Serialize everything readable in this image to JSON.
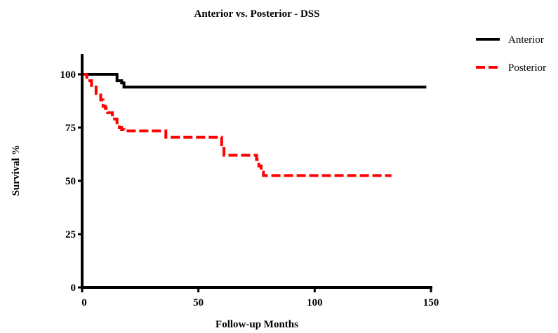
{
  "chart_data": {
    "type": "line",
    "step": true,
    "title": "Anterior vs. Posterior - DSS",
    "xlabel": "Follow-up Months",
    "ylabel": "Survival %",
    "xlim": [
      0,
      150
    ],
    "ylim": [
      0,
      110
    ],
    "xticks": [
      0,
      50,
      100,
      150
    ],
    "yticks": [
      0,
      25,
      50,
      75,
      100
    ],
    "legend_position": "top-right",
    "grid": false,
    "series": [
      {
        "name": "Anterior",
        "color": "#000000",
        "style": "solid",
        "x": [
          0,
          15,
          15,
          17,
          17,
          18,
          18,
          148
        ],
        "y": [
          100,
          100,
          97,
          97,
          96,
          96,
          94,
          94
        ]
      },
      {
        "name": "Posterior",
        "color": "#ff0000",
        "style": "dashed",
        "x": [
          0,
          2,
          2,
          4,
          4,
          6,
          6,
          8,
          8,
          9,
          9,
          10,
          10,
          11,
          11,
          13,
          13,
          15,
          15,
          16,
          16,
          17,
          17,
          18,
          18,
          36,
          36,
          60,
          60,
          61,
          61,
          75,
          75,
          76,
          76,
          77,
          77,
          78,
          78,
          133
        ],
        "y": [
          100,
          100,
          97,
          97,
          94,
          94,
          91,
          91,
          88,
          88,
          85,
          85,
          84,
          84,
          82,
          82,
          79,
          79,
          76,
          76,
          75,
          75,
          74,
          74,
          73.5,
          73.5,
          70.5,
          70.5,
          67,
          67,
          62,
          62,
          60,
          60,
          57,
          57,
          55,
          55,
          52.5,
          52.5
        ]
      }
    ]
  }
}
